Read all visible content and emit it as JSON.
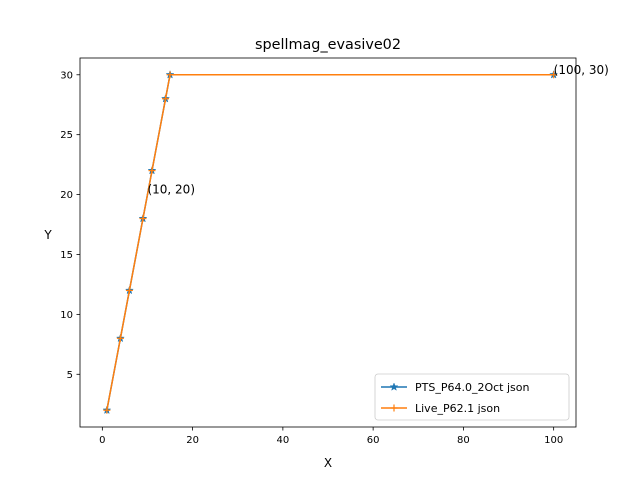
{
  "chart_data": {
    "type": "line",
    "title": "spellmag_evasive02",
    "xlabel": "X",
    "ylabel": "Y",
    "xlim": [
      -4.95,
      104.95
    ],
    "ylim": [
      0.6,
      31.4
    ],
    "xticks": [
      0,
      20,
      40,
      60,
      80,
      100
    ],
    "yticks": [
      5,
      10,
      15,
      20,
      25,
      30
    ],
    "grid": false,
    "legend_position": "lower-right",
    "series": [
      {
        "name": "PTS_P64.0_2Oct json",
        "color": "#1f77b4",
        "marker": "star",
        "x": [
          1,
          4,
          6,
          9,
          11,
          14,
          15,
          100
        ],
        "y": [
          2,
          8,
          12,
          18,
          22,
          28,
          30,
          30
        ]
      },
      {
        "name": "Live_P62.1 json",
        "color": "#ff7f0e",
        "marker": "plus",
        "x": [
          1,
          4,
          6,
          9,
          11,
          14,
          15,
          100
        ],
        "y": [
          2,
          8,
          12,
          18,
          22,
          28,
          30,
          30
        ]
      }
    ],
    "annotations": [
      {
        "text": "(10, 20)",
        "x": 10,
        "y": 20
      },
      {
        "text": "(100, 30)",
        "x": 100,
        "y": 30
      }
    ]
  }
}
